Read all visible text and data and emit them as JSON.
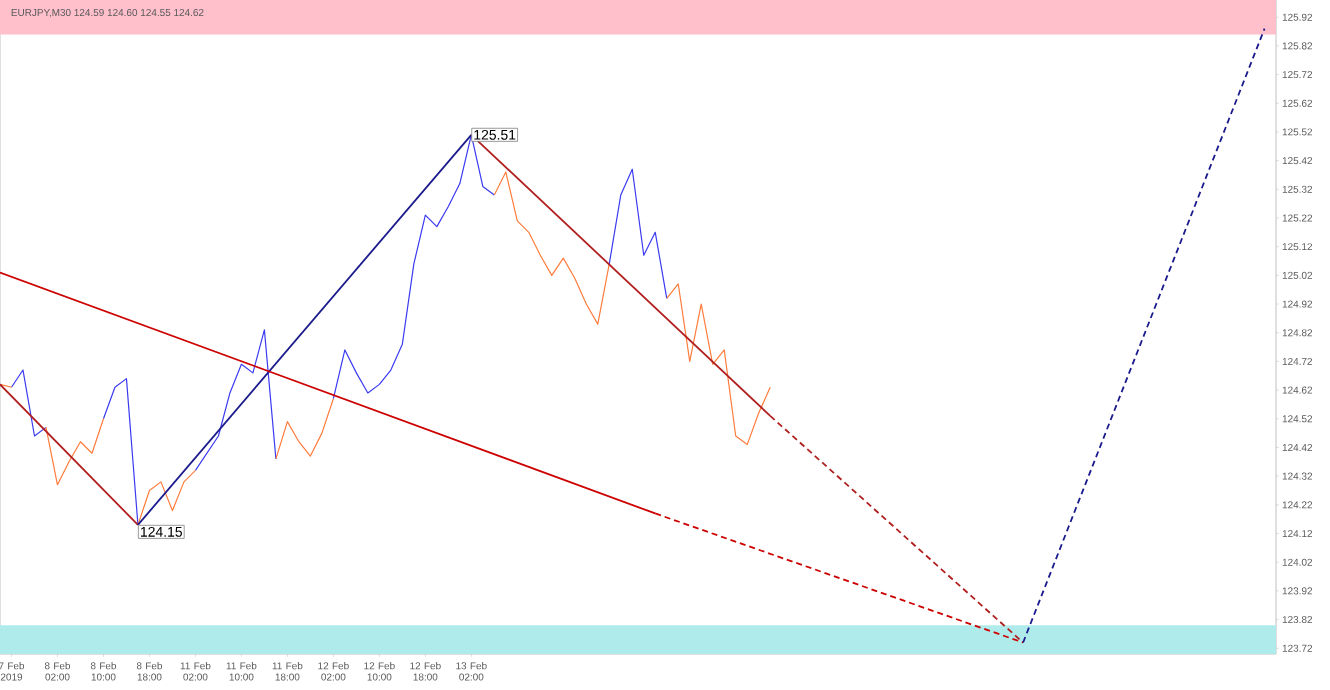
{
  "chart_data": {
    "type": "line",
    "title": "EURJPY,M30 124.59 124.60 124.55 124.62",
    "categories": [
      null,
      "7 Feb 2019",
      null,
      null,
      null,
      "8 Feb 02:00",
      null,
      null,
      null,
      "8 Feb 10:00",
      null,
      null,
      null,
      "8 Feb 18:00",
      null,
      null,
      null,
      "11 Feb 02:00",
      null,
      null,
      null,
      "11 Feb 10:00",
      null,
      null,
      null,
      "11 Feb 18:00",
      null,
      null,
      null,
      "12 Feb 02:00",
      null,
      null,
      null,
      "12 Feb 10:00",
      null,
      null,
      null,
      "12 Feb 18:00",
      null,
      null,
      null,
      "13 Feb 02:00",
      null,
      null,
      null,
      null,
      null,
      null,
      null,
      null,
      null,
      null,
      null,
      null,
      null,
      null,
      null,
      null,
      null,
      null,
      null,
      null,
      null,
      null,
      null,
      null,
      null,
      null,
      null,
      null,
      null,
      null,
      null,
      null,
      null,
      null,
      null,
      null,
      null,
      null,
      null,
      null,
      null,
      null,
      null,
      null,
      null,
      null,
      null,
      null,
      null,
      null,
      null,
      null,
      null,
      null,
      null,
      null,
      null,
      null,
      null,
      null,
      null,
      null,
      null,
      null,
      null,
      null,
      null,
      null,
      null,
      null
    ],
    "ylim": [
      123.7,
      125.98
    ],
    "yticks": [
      123.72,
      123.82,
      123.92,
      124.02,
      124.12,
      124.22,
      124.32,
      124.42,
      124.52,
      124.62,
      124.72,
      124.82,
      124.92,
      125.02,
      125.12,
      125.22,
      125.32,
      125.42,
      125.52,
      125.62,
      125.72,
      125.82,
      125.92
    ],
    "marker": "none",
    "bands": [
      {
        "axis": "y",
        "from": 125.86,
        "to": 125.98,
        "color": "#ffc0cb"
      },
      {
        "axis": "y",
        "from": 123.7,
        "to": 123.8,
        "color": "#b0ebeb"
      }
    ],
    "annotations": [
      "124.15",
      "125.51"
    ],
    "series": [
      {
        "color": "#3a3af0",
        "values": [
          null,
          124.63,
          124.69,
          124.46,
          124.49,
          null,
          null,
          null,
          null,
          124.52,
          124.63,
          124.66,
          124.15,
          null,
          null,
          null,
          null,
          124.34,
          124.4,
          124.46,
          124.61,
          124.71,
          124.68,
          124.83,
          124.38,
          null,
          null,
          null,
          null,
          124.59,
          124.76,
          124.68,
          124.61,
          124.64,
          124.69,
          124.78,
          125.06,
          125.23,
          125.19,
          125.26,
          125.34,
          125.51,
          125.33,
          125.3,
          null,
          null,
          null,
          null,
          null,
          null,
          null,
          null,
          null,
          125.06,
          125.3,
          125.39,
          125.09,
          125.17,
          124.94,
          null,
          null,
          null,
          null,
          null,
          null,
          null,
          null,
          null,
          null,
          null,
          null,
          null,
          null,
          null,
          null,
          null,
          null,
          null,
          null,
          null,
          null,
          null,
          null,
          null,
          null,
          null,
          null,
          null,
          null,
          null,
          null,
          null,
          null,
          null,
          null,
          null,
          null,
          null,
          null,
          null,
          null,
          null,
          null,
          null,
          null,
          null,
          null,
          null,
          null,
          null,
          null,
          null
        ]
      },
      {
        "color": "#ff7c3c",
        "values": [
          124.64,
          124.63,
          null,
          null,
          124.49,
          124.29,
          124.37,
          124.44,
          124.4,
          124.52,
          null,
          null,
          124.15,
          124.27,
          124.3,
          124.2,
          124.3,
          124.34,
          null,
          null,
          null,
          null,
          null,
          null,
          124.38,
          124.51,
          124.44,
          124.39,
          124.47,
          124.59,
          null,
          null,
          null,
          null,
          null,
          null,
          null,
          null,
          null,
          null,
          null,
          null,
          null,
          125.3,
          125.38,
          125.21,
          125.17,
          125.09,
          125.02,
          125.08,
          125.01,
          124.92,
          124.85,
          125.06,
          null,
          null,
          null,
          null,
          124.94,
          124.99,
          124.72,
          124.92,
          124.71,
          124.76,
          124.46,
          124.43,
          124.54,
          124.63,
          null,
          null,
          null,
          null,
          null,
          null,
          null,
          null,
          null,
          null,
          null,
          null,
          null,
          null,
          null,
          null,
          null,
          null,
          null,
          null,
          null,
          null,
          null,
          null,
          null,
          null,
          null,
          null,
          null,
          null,
          null,
          null,
          null,
          null,
          null,
          null,
          null,
          null,
          null,
          null,
          null,
          null,
          null,
          null
        ]
      },
      {
        "color": "#b01e1e",
        "line_style": "solid",
        "values": [
          124.64,
          null,
          null,
          null,
          null,
          null,
          null,
          null,
          null,
          null,
          null,
          null,
          124.15,
          null,
          null,
          null,
          null,
          null,
          null,
          null,
          null,
          null,
          null,
          null,
          null,
          null,
          null,
          null,
          null,
          null,
          null,
          null,
          null,
          null,
          null,
          null,
          null,
          null,
          null,
          null,
          null,
          null,
          null,
          null,
          null,
          null,
          null,
          null,
          null,
          null,
          null,
          null,
          null,
          null,
          null,
          null,
          null,
          null,
          null,
          null,
          null,
          null,
          null,
          null,
          null,
          null,
          null,
          null,
          null,
          null,
          null,
          null,
          null,
          null,
          null,
          null,
          null,
          null,
          null,
          null,
          null,
          null,
          null,
          null,
          null,
          null,
          null,
          null,
          null,
          null,
          null,
          null,
          null,
          null,
          null,
          null,
          null,
          null,
          null,
          null,
          null,
          null,
          null,
          null,
          null,
          null,
          null,
          null,
          null,
          null,
          null,
          null
        ]
      },
      {
        "color": "#1a1a8c",
        "line_style": "solid",
        "values": [
          null,
          null,
          null,
          null,
          null,
          null,
          null,
          null,
          null,
          null,
          null,
          null,
          124.15,
          null,
          null,
          null,
          null,
          null,
          null,
          null,
          null,
          null,
          null,
          null,
          null,
          null,
          null,
          null,
          null,
          null,
          null,
          null,
          null,
          null,
          null,
          null,
          null,
          null,
          null,
          null,
          null,
          125.51,
          null,
          null,
          null,
          null,
          null,
          null,
          null,
          null,
          null,
          null,
          null,
          null,
          null,
          null,
          null,
          null,
          null,
          null,
          null,
          null,
          null,
          null,
          null,
          null,
          null,
          null,
          null,
          null,
          null,
          null,
          null,
          null,
          null,
          null,
          null,
          null,
          null,
          null,
          null,
          null,
          null,
          null,
          null,
          null,
          null,
          null,
          null,
          null,
          null,
          null,
          null,
          null,
          null,
          null,
          null,
          null,
          null,
          null,
          null,
          null,
          null,
          null,
          null,
          null,
          null,
          null,
          null,
          null,
          null,
          null
        ]
      },
      {
        "color": "#b01e1e",
        "line_style": "solid",
        "values": [
          null,
          null,
          null,
          null,
          null,
          null,
          null,
          null,
          null,
          null,
          null,
          null,
          null,
          null,
          null,
          null,
          null,
          null,
          null,
          null,
          null,
          null,
          null,
          null,
          null,
          null,
          null,
          null,
          null,
          null,
          null,
          null,
          null,
          null,
          null,
          null,
          null,
          null,
          null,
          null,
          null,
          125.51,
          null,
          null,
          null,
          null,
          null,
          null,
          null,
          null,
          null,
          null,
          null,
          null,
          null,
          null,
          null,
          null,
          null,
          null,
          null,
          null,
          null,
          null,
          null,
          null,
          null,
          124.53,
          null,
          null,
          null,
          null,
          null,
          null,
          null,
          null,
          null,
          null,
          null,
          null,
          null,
          null,
          null,
          null,
          null,
          null,
          null,
          null,
          null,
          null,
          null,
          null,
          null,
          null,
          null,
          null,
          null,
          null,
          null,
          null,
          null,
          null,
          null,
          null,
          null,
          null,
          null,
          null,
          null,
          null,
          null,
          null
        ]
      },
      {
        "color": "#b01e1e",
        "line_style": "dashed",
        "values": [
          null,
          null,
          null,
          null,
          null,
          null,
          null,
          null,
          null,
          null,
          null,
          null,
          null,
          null,
          null,
          null,
          null,
          null,
          null,
          null,
          null,
          null,
          null,
          null,
          null,
          null,
          null,
          null,
          null,
          null,
          null,
          null,
          null,
          null,
          null,
          null,
          null,
          null,
          null,
          null,
          null,
          null,
          null,
          null,
          null,
          null,
          null,
          null,
          null,
          null,
          null,
          null,
          null,
          null,
          null,
          null,
          null,
          null,
          null,
          null,
          null,
          null,
          null,
          null,
          null,
          null,
          null,
          124.53,
          null,
          null,
          null,
          null,
          null,
          null,
          null,
          null,
          null,
          null,
          null,
          null,
          null,
          null,
          null,
          null,
          null,
          null,
          null,
          null,
          null,
          123.74,
          null,
          null,
          null,
          null,
          null,
          null,
          null,
          null,
          null,
          null,
          null,
          null,
          null,
          null,
          null,
          null,
          null,
          null,
          null,
          null,
          null,
          null
        ]
      },
      {
        "color": "#cc0000",
        "line_style": "solid",
        "values": [
          125.03,
          null,
          null,
          null,
          null,
          null,
          null,
          null,
          null,
          null,
          null,
          null,
          null,
          null,
          null,
          null,
          null,
          null,
          null,
          null,
          null,
          null,
          null,
          null,
          null,
          null,
          null,
          null,
          null,
          null,
          null,
          null,
          null,
          null,
          null,
          null,
          null,
          null,
          null,
          null,
          null,
          null,
          null,
          null,
          null,
          null,
          null,
          null,
          null,
          null,
          null,
          null,
          null,
          null,
          null,
          null,
          null,
          124.19,
          null,
          null,
          null,
          null,
          null,
          null,
          null,
          null,
          null,
          null,
          null,
          null,
          null,
          null,
          null,
          null,
          null,
          null,
          null,
          null,
          null,
          null,
          null,
          null,
          null,
          null,
          null,
          null,
          null,
          null,
          null,
          null,
          null,
          null,
          null,
          null,
          null,
          null,
          null,
          null,
          null,
          null,
          null,
          null,
          null,
          null,
          null,
          null,
          null,
          null,
          null,
          null,
          null,
          null
        ]
      },
      {
        "color": "#cc0000",
        "line_style": "dashed",
        "values": [
          null,
          null,
          null,
          null,
          null,
          null,
          null,
          null,
          null,
          null,
          null,
          null,
          null,
          null,
          null,
          null,
          null,
          null,
          null,
          null,
          null,
          null,
          null,
          null,
          null,
          null,
          null,
          null,
          null,
          null,
          null,
          null,
          null,
          null,
          null,
          null,
          null,
          null,
          null,
          null,
          null,
          null,
          null,
          null,
          null,
          null,
          null,
          null,
          null,
          null,
          null,
          null,
          null,
          null,
          null,
          null,
          null,
          124.19,
          null,
          null,
          null,
          null,
          null,
          null,
          null,
          null,
          null,
          null,
          null,
          null,
          null,
          null,
          null,
          null,
          null,
          null,
          null,
          null,
          null,
          null,
          null,
          null,
          null,
          null,
          null,
          null,
          null,
          null,
          null,
          123.74,
          null,
          null,
          null,
          null,
          null,
          null,
          null,
          null,
          null,
          null,
          null,
          null,
          null,
          null,
          null,
          null,
          null,
          null,
          null,
          null,
          null,
          null
        ]
      },
      {
        "color": "#1a1a8c",
        "line_style": "dashed",
        "values": [
          null,
          null,
          null,
          null,
          null,
          null,
          null,
          null,
          null,
          null,
          null,
          null,
          null,
          null,
          null,
          null,
          null,
          null,
          null,
          null,
          null,
          null,
          null,
          null,
          null,
          null,
          null,
          null,
          null,
          null,
          null,
          null,
          null,
          null,
          null,
          null,
          null,
          null,
          null,
          null,
          null,
          null,
          null,
          null,
          null,
          null,
          null,
          null,
          null,
          null,
          null,
          null,
          null,
          null,
          null,
          null,
          null,
          null,
          null,
          null,
          null,
          null,
          null,
          null,
          null,
          null,
          null,
          null,
          null,
          null,
          null,
          null,
          null,
          null,
          null,
          null,
          null,
          null,
          null,
          null,
          null,
          null,
          null,
          null,
          null,
          null,
          null,
          null,
          null,
          123.74,
          null,
          null,
          null,
          null,
          null,
          null,
          null,
          null,
          null,
          null,
          null,
          null,
          null,
          null,
          null,
          null,
          null,
          null,
          null,
          null,
          125.88,
          null
        ]
      }
    ]
  }
}
